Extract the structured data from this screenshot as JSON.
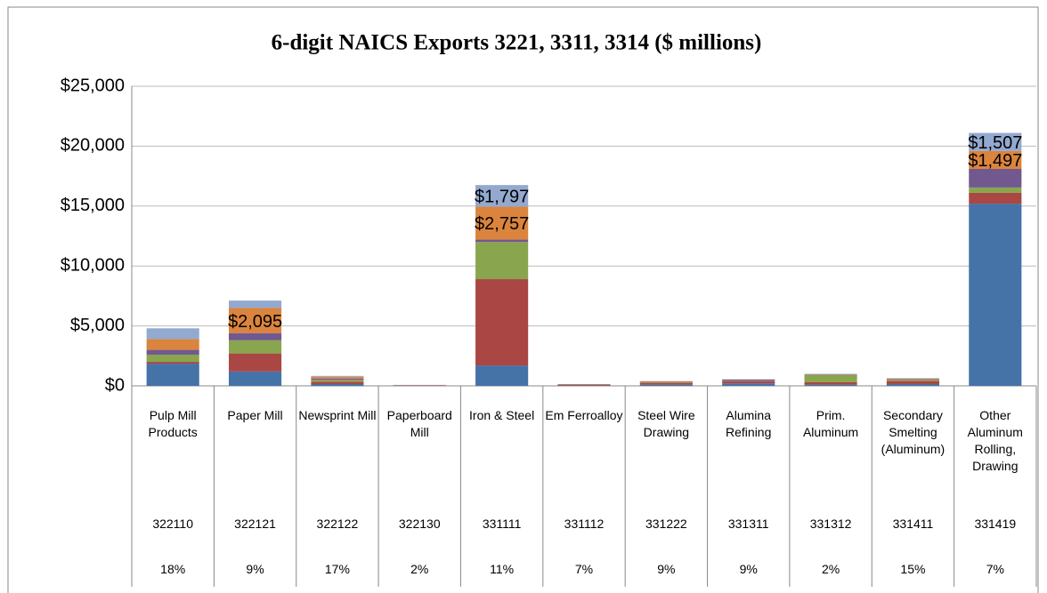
{
  "chart_data": {
    "type": "stacked_bar",
    "title": "6-digit NAICS Exports 3221, 3311, 3314 ($ millions)",
    "categories": [
      "Pulp Mill Products",
      "Paper Mill",
      "Newsprint Mill",
      "Paperboard Mill",
      "Iron & Steel",
      "Em Ferroalloy",
      "Steel Wire Drawing",
      "Alumina Refining",
      "Prim. Aluminum",
      "Secondary Smelting (Aluminum)",
      "Other Aluminum Rolling, Drawing"
    ],
    "codes": [
      "322110",
      "322121",
      "322122",
      "322130",
      "331111",
      "331112",
      "331222",
      "331311",
      "331312",
      "331411",
      "331419"
    ],
    "shares": [
      "18%",
      "9%",
      "17%",
      "2%",
      "11%",
      "7%",
      "9%",
      "9%",
      "2%",
      "15%",
      "7%"
    ],
    "series": [
      {
        "color": "#4572a7",
        "values": [
          1850,
          1200,
          150,
          20,
          1700,
          30,
          100,
          200,
          100,
          150,
          15200
        ]
      },
      {
        "color": "#aa4643",
        "values": [
          150,
          1500,
          200,
          20,
          7200,
          80,
          150,
          200,
          200,
          250,
          900
        ]
      },
      {
        "color": "#89a54e",
        "values": [
          600,
          1100,
          150,
          10,
          3100,
          10,
          50,
          30,
          600,
          100,
          450
        ]
      },
      {
        "color": "#71588f",
        "values": [
          400,
          600,
          100,
          10,
          200,
          10,
          30,
          100,
          30,
          50,
          1550
        ]
      },
      {
        "color": "#db843d",
        "values": [
          900,
          2095,
          150,
          10,
          2757,
          10,
          50,
          10,
          30,
          60,
          1497
        ],
        "value_labels": [
          null,
          "$2,095",
          null,
          null,
          "$2,757",
          null,
          null,
          null,
          null,
          null,
          "$1,497"
        ]
      },
      {
        "color": "#93a9cf",
        "values": [
          900,
          620,
          80,
          10,
          1797,
          10,
          20,
          10,
          40,
          40,
          1507
        ],
        "value_labels": [
          null,
          null,
          null,
          null,
          "$1,797",
          null,
          null,
          null,
          null,
          null,
          "$1,507"
        ]
      }
    ],
    "ylim": [
      0,
      25000
    ],
    "yticks": [
      {
        "value": 0,
        "label": "$0"
      },
      {
        "value": 5000,
        "label": "$5,000"
      },
      {
        "value": 10000,
        "label": "$10,000"
      },
      {
        "value": 15000,
        "label": "$15,000"
      },
      {
        "value": 20000,
        "label": "$20,000"
      },
      {
        "value": 25000,
        "label": "$25,000"
      }
    ],
    "grid": true
  }
}
